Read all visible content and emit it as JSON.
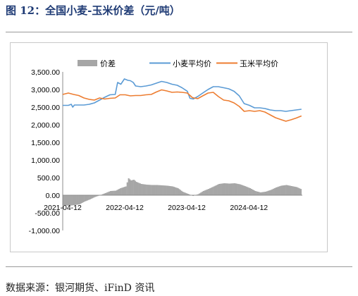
{
  "figure": {
    "title": "图 12：全国小麦-玉米价差（元/吨）",
    "source": "数据来源：银河期货、iFinD 资讯"
  },
  "chart_data": {
    "type": "line",
    "x_type": "date",
    "x_ticks": [
      "2021-04-12",
      "2022-04-12",
      "2023-04-12",
      "2024-04-12"
    ],
    "ylim": [
      -1000,
      3500
    ],
    "y_ticks": [
      "3,500.00",
      "3,000.00",
      "2,500.00",
      "2,000.00",
      "1,500.00",
      "1,000.00",
      "500.00",
      "0.00",
      "-500.00",
      "-1,000.00"
    ],
    "legend_position": "top",
    "grid": false,
    "colors": {
      "spread": "#a6a6a6",
      "wheat": "#5b9bd5",
      "corn": "#ed7d31"
    },
    "series": [
      {
        "name": "价差",
        "kind": "area",
        "points": [
          [
            "2021-04-12",
            -280
          ],
          [
            "2021-05-15",
            -300
          ],
          [
            "2021-06-15",
            -280
          ],
          [
            "2021-07-15",
            -260
          ],
          [
            "2021-08-15",
            -180
          ],
          [
            "2021-09-15",
            -120
          ],
          [
            "2021-10-15",
            -50
          ],
          [
            "2021-11-15",
            0
          ],
          [
            "2021-12-15",
            60
          ],
          [
            "2022-01-15",
            120
          ],
          [
            "2022-02-15",
            130
          ],
          [
            "2022-03-15",
            200
          ],
          [
            "2022-04-15",
            250
          ],
          [
            "2022-05-01",
            480
          ],
          [
            "2022-05-15",
            420
          ],
          [
            "2022-06-01",
            440
          ],
          [
            "2022-06-15",
            380
          ],
          [
            "2022-07-15",
            320
          ],
          [
            "2022-08-15",
            300
          ],
          [
            "2022-09-15",
            290
          ],
          [
            "2022-10-15",
            290
          ],
          [
            "2022-11-15",
            280
          ],
          [
            "2022-12-15",
            270
          ],
          [
            "2023-01-15",
            250
          ],
          [
            "2023-02-15",
            200
          ],
          [
            "2023-03-15",
            100
          ],
          [
            "2023-04-15",
            40
          ],
          [
            "2023-05-15",
            -20
          ],
          [
            "2023-06-15",
            30
          ],
          [
            "2023-07-15",
            120
          ],
          [
            "2023-08-15",
            180
          ],
          [
            "2023-09-15",
            250
          ],
          [
            "2023-10-15",
            320
          ],
          [
            "2023-11-15",
            340
          ],
          [
            "2023-12-15",
            330
          ],
          [
            "2024-01-15",
            340
          ],
          [
            "2024-02-15",
            310
          ],
          [
            "2024-03-15",
            260
          ],
          [
            "2024-04-15",
            200
          ],
          [
            "2024-05-15",
            120
          ],
          [
            "2024-06-15",
            80
          ],
          [
            "2024-07-15",
            100
          ],
          [
            "2024-08-15",
            150
          ],
          [
            "2024-09-15",
            220
          ],
          [
            "2024-10-15",
            270
          ],
          [
            "2024-11-15",
            290
          ],
          [
            "2024-12-15",
            260
          ],
          [
            "2025-01-15",
            230
          ],
          [
            "2025-02-15",
            160
          ]
        ]
      },
      {
        "name": "小麦平均价",
        "kind": "line",
        "points": [
          [
            "2021-04-12",
            2550
          ],
          [
            "2021-05-15",
            2550
          ],
          [
            "2021-06-01",
            2580
          ],
          [
            "2021-06-10",
            2500
          ],
          [
            "2021-06-20",
            2560
          ],
          [
            "2021-07-15",
            2560
          ],
          [
            "2021-08-15",
            2560
          ],
          [
            "2021-09-15",
            2580
          ],
          [
            "2021-10-15",
            2620
          ],
          [
            "2021-11-15",
            2700
          ],
          [
            "2021-12-15",
            2780
          ],
          [
            "2022-01-15",
            2850
          ],
          [
            "2022-02-15",
            2860
          ],
          [
            "2022-03-01",
            3200
          ],
          [
            "2022-03-20",
            3150
          ],
          [
            "2022-04-10",
            3300
          ],
          [
            "2022-05-01",
            3260
          ],
          [
            "2022-05-15",
            3250
          ],
          [
            "2022-06-01",
            3200
          ],
          [
            "2022-06-15",
            3100
          ],
          [
            "2022-07-15",
            3080
          ],
          [
            "2022-08-15",
            3100
          ],
          [
            "2022-09-15",
            3130
          ],
          [
            "2022-10-15",
            3180
          ],
          [
            "2022-11-15",
            3230
          ],
          [
            "2022-12-15",
            3200
          ],
          [
            "2023-01-15",
            3150
          ],
          [
            "2023-02-15",
            3120
          ],
          [
            "2023-03-15",
            3050
          ],
          [
            "2023-04-15",
            2950
          ],
          [
            "2023-05-01",
            2750
          ],
          [
            "2023-05-20",
            2730
          ],
          [
            "2023-06-15",
            2800
          ],
          [
            "2023-07-15",
            2900
          ],
          [
            "2023-08-15",
            3000
          ],
          [
            "2023-09-15",
            3080
          ],
          [
            "2023-10-15",
            3080
          ],
          [
            "2023-11-15",
            3050
          ],
          [
            "2023-12-15",
            3020
          ],
          [
            "2024-01-15",
            2950
          ],
          [
            "2024-02-15",
            2820
          ],
          [
            "2024-03-15",
            2600
          ],
          [
            "2024-04-15",
            2550
          ],
          [
            "2024-05-15",
            2480
          ],
          [
            "2024-06-15",
            2480
          ],
          [
            "2024-07-15",
            2460
          ],
          [
            "2024-08-15",
            2420
          ],
          [
            "2024-09-15",
            2400
          ],
          [
            "2024-10-15",
            2400
          ],
          [
            "2024-11-15",
            2380
          ],
          [
            "2024-12-15",
            2400
          ],
          [
            "2025-01-15",
            2420
          ],
          [
            "2025-02-15",
            2440
          ]
        ]
      },
      {
        "name": "玉米平均价",
        "kind": "line",
        "points": [
          [
            "2021-04-12",
            2860
          ],
          [
            "2021-05-15",
            2900
          ],
          [
            "2021-06-15",
            2860
          ],
          [
            "2021-07-15",
            2830
          ],
          [
            "2021-08-15",
            2760
          ],
          [
            "2021-09-15",
            2720
          ],
          [
            "2021-10-15",
            2700
          ],
          [
            "2021-11-15",
            2760
          ],
          [
            "2021-12-15",
            2730
          ],
          [
            "2022-01-15",
            2750
          ],
          [
            "2022-02-15",
            2760
          ],
          [
            "2022-03-15",
            2850
          ],
          [
            "2022-04-15",
            2850
          ],
          [
            "2022-05-15",
            2820
          ],
          [
            "2022-06-15",
            2830
          ],
          [
            "2022-07-15",
            2830
          ],
          [
            "2022-08-15",
            2850
          ],
          [
            "2022-09-15",
            2860
          ],
          [
            "2022-10-15",
            2930
          ],
          [
            "2022-11-15",
            2990
          ],
          [
            "2022-12-15",
            2960
          ],
          [
            "2023-01-15",
            2920
          ],
          [
            "2023-02-15",
            2930
          ],
          [
            "2023-03-15",
            2920
          ],
          [
            "2023-04-15",
            2900
          ],
          [
            "2023-05-15",
            2770
          ],
          [
            "2023-06-15",
            2740
          ],
          [
            "2023-07-15",
            2820
          ],
          [
            "2023-08-15",
            2900
          ],
          [
            "2023-09-15",
            2920
          ],
          [
            "2023-10-15",
            2800
          ],
          [
            "2023-11-15",
            2700
          ],
          [
            "2023-12-15",
            2680
          ],
          [
            "2024-01-15",
            2620
          ],
          [
            "2024-02-15",
            2520
          ],
          [
            "2024-03-15",
            2380
          ],
          [
            "2024-04-15",
            2400
          ],
          [
            "2024-05-15",
            2380
          ],
          [
            "2024-06-15",
            2400
          ],
          [
            "2024-07-15",
            2360
          ],
          [
            "2024-08-15",
            2280
          ],
          [
            "2024-09-15",
            2200
          ],
          [
            "2024-10-15",
            2150
          ],
          [
            "2024-11-15",
            2100
          ],
          [
            "2024-12-15",
            2140
          ],
          [
            "2025-01-15",
            2190
          ],
          [
            "2025-02-15",
            2250
          ]
        ]
      }
    ]
  }
}
